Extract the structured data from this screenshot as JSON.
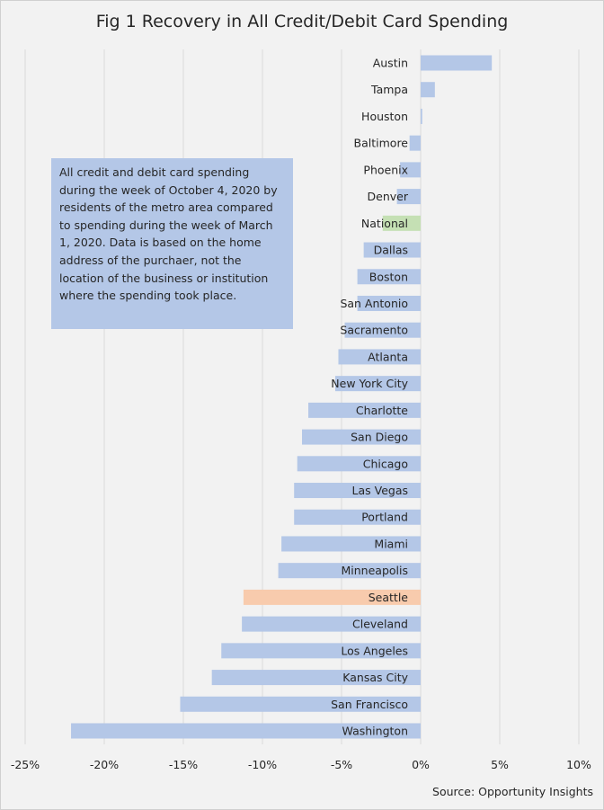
{
  "chart_data": {
    "type": "bar",
    "orientation": "horizontal",
    "title": "Fig 1 Recovery in All Credit/Debit Card Spending",
    "categories": [
      "Austin",
      "Tampa",
      "Houston",
      "Baltimore",
      "Phoenix",
      "Denver",
      "National",
      "Dallas",
      "Boston",
      "San Antonio",
      "Sacramento",
      "Atlanta",
      "New York City",
      "Charlotte",
      "San Diego",
      "Chicago",
      "Las Vegas",
      "Portland",
      "Miami",
      "Minneapolis",
      "Seattle",
      "Cleveland",
      "Los Angeles",
      "Kansas City",
      "San Francisco",
      "Washington"
    ],
    "values": [
      4.5,
      0.9,
      0.1,
      -0.7,
      -1.3,
      -1.5,
      -2.4,
      -3.6,
      -4.0,
      -4.0,
      -4.8,
      -5.2,
      -5.4,
      -7.1,
      -7.5,
      -7.8,
      -8.0,
      -8.0,
      -8.8,
      -9.0,
      -11.2,
      -11.3,
      -12.6,
      -13.2,
      -15.2,
      -22.1
    ],
    "xlim": [
      -25,
      10
    ],
    "xticks": [
      -25,
      -20,
      -15,
      -10,
      -5,
      0,
      5,
      10
    ],
    "tick_suffix": "%",
    "grid": "vertical",
    "colors": {
      "default": "#b4c7e7",
      "National": "#c5e0b4",
      "Seattle": "#f8cbad"
    }
  },
  "annotation": "All credit and debit card spending during the week of October 4, 2020 by residents of the metro  area compared to spending during the week of March 1, 2020. Data is based on the home address of the purchaer, not the location of the business or institution where the spending took place.",
  "source": "Source: Opportunity Insights"
}
